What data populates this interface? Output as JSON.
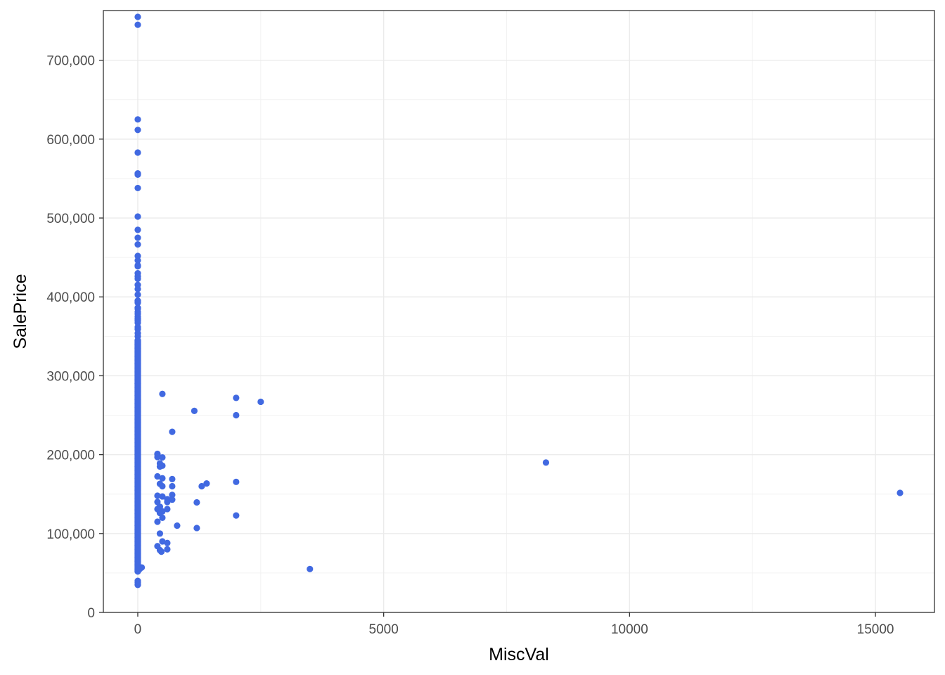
{
  "chart_data": {
    "type": "scatter",
    "title": "",
    "xlabel": "MiscVal",
    "ylabel": "SalePrice",
    "xlim": [
      -700,
      16200
    ],
    "ylim": [
      0,
      763000
    ],
    "x_ticks": [
      0,
      5000,
      10000,
      15000
    ],
    "x_tick_labels": [
      "0",
      "5000",
      "10000",
      "15000"
    ],
    "y_ticks": [
      0,
      100000,
      200000,
      300000,
      400000,
      500000,
      600000,
      700000
    ],
    "y_tick_labels": [
      "0",
      "100,000",
      "200,000",
      "300,000",
      "400,000",
      "500,000",
      "600,000",
      "700,000"
    ],
    "grid": true,
    "legend": "none",
    "point_color": "#4169E1",
    "series": [
      {
        "points": [
          [
            0,
            755000
          ],
          [
            0,
            745000
          ],
          [
            0,
            625000
          ],
          [
            0,
            611657
          ],
          [
            0,
            582933
          ],
          [
            0,
            556581
          ],
          [
            0,
            555000
          ],
          [
            0,
            538000
          ],
          [
            0,
            501837
          ],
          [
            0,
            485000
          ],
          [
            0,
            475000
          ],
          [
            0,
            466500
          ],
          [
            0,
            451950
          ],
          [
            0,
            446261
          ],
          [
            0,
            440000
          ],
          [
            0,
            438780
          ],
          [
            0,
            430000
          ],
          [
            0,
            426000
          ],
          [
            0,
            423000
          ],
          [
            0,
            415298
          ],
          [
            0,
            410000
          ],
          [
            0,
            402861
          ],
          [
            0,
            395192
          ],
          [
            0,
            394432
          ],
          [
            0,
            392500
          ],
          [
            0,
            386250
          ],
          [
            0,
            385000
          ],
          [
            0,
            381000
          ],
          [
            0,
            378500
          ],
          [
            0,
            375000
          ],
          [
            0,
            372500
          ],
          [
            0,
            370878
          ],
          [
            0,
            369900
          ],
          [
            0,
            367294
          ],
          [
            0,
            361919
          ],
          [
            0,
            359100
          ],
          [
            0,
            354000
          ],
          [
            0,
            350000
          ],
          [
            0,
            345000
          ],
          [
            0,
            340000
          ],
          [
            0,
            335000
          ],
          [
            0,
            330000
          ],
          [
            0,
            325000
          ],
          [
            0,
            320000
          ],
          [
            0,
            315000
          ],
          [
            0,
            310000
          ],
          [
            0,
            305000
          ],
          [
            0,
            300000
          ],
          [
            0,
            295000
          ],
          [
            0,
            290000
          ],
          [
            0,
            285000
          ],
          [
            0,
            280000
          ],
          [
            0,
            275000
          ],
          [
            0,
            270000
          ],
          [
            0,
            265000
          ],
          [
            0,
            260000
          ],
          [
            0,
            255000
          ],
          [
            0,
            250000
          ],
          [
            0,
            245000
          ],
          [
            0,
            240000
          ],
          [
            0,
            235000
          ],
          [
            0,
            230000
          ],
          [
            0,
            225000
          ],
          [
            0,
            220000
          ],
          [
            0,
            215000
          ],
          [
            0,
            210000
          ],
          [
            0,
            205000
          ],
          [
            0,
            200000
          ],
          [
            0,
            195000
          ],
          [
            0,
            190000
          ],
          [
            0,
            185000
          ],
          [
            0,
            180000
          ],
          [
            0,
            175000
          ],
          [
            0,
            170000
          ],
          [
            0,
            165000
          ],
          [
            0,
            160000
          ],
          [
            0,
            155000
          ],
          [
            0,
            150000
          ],
          [
            0,
            145000
          ],
          [
            0,
            140000
          ],
          [
            0,
            135000
          ],
          [
            0,
            130000
          ],
          [
            0,
            125000
          ],
          [
            0,
            120000
          ],
          [
            0,
            115000
          ],
          [
            0,
            110000
          ],
          [
            0,
            105000
          ],
          [
            0,
            100000
          ],
          [
            0,
            95000
          ],
          [
            0,
            90000
          ],
          [
            0,
            85000
          ],
          [
            0,
            80000
          ],
          [
            0,
            75000
          ],
          [
            0,
            70000
          ],
          [
            0,
            65000
          ],
          [
            0,
            60000
          ],
          [
            0,
            55000
          ],
          [
            0,
            52000
          ],
          [
            0,
            40000
          ],
          [
            0,
            37900
          ],
          [
            0,
            35311
          ],
          [
            0,
            34900
          ],
          [
            80,
            57000
          ],
          [
            40,
            55000
          ],
          [
            400,
            200500
          ],
          [
            400,
            201000
          ],
          [
            400,
            197000
          ],
          [
            450,
            189000
          ],
          [
            500,
            196500
          ],
          [
            450,
            185000
          ],
          [
            500,
            186000
          ],
          [
            400,
            172500
          ],
          [
            500,
            170000
          ],
          [
            450,
            163000
          ],
          [
            500,
            160000
          ],
          [
            400,
            148000
          ],
          [
            500,
            147000
          ],
          [
            400,
            140000
          ],
          [
            450,
            134000
          ],
          [
            400,
            131000
          ],
          [
            500,
            128000
          ],
          [
            450,
            126000
          ],
          [
            500,
            120000
          ],
          [
            400,
            115000
          ],
          [
            450,
            100000
          ],
          [
            500,
            90000
          ],
          [
            400,
            84000
          ],
          [
            450,
            79000
          ],
          [
            480,
            77000
          ],
          [
            500,
            277000
          ],
          [
            700,
            229000
          ],
          [
            700,
            169000
          ],
          [
            700,
            160000
          ],
          [
            700,
            149000
          ],
          [
            700,
            143000
          ],
          [
            600,
            143500
          ],
          [
            600,
            140000
          ],
          [
            600,
            131000
          ],
          [
            600,
            88000
          ],
          [
            600,
            80000
          ],
          [
            800,
            110000
          ],
          [
            1150,
            255500
          ],
          [
            1200,
            139500
          ],
          [
            1200,
            107000
          ],
          [
            1300,
            160000
          ],
          [
            1400,
            163500
          ],
          [
            2000,
            272000
          ],
          [
            2000,
            250000
          ],
          [
            2000,
            165500
          ],
          [
            2000,
            122900
          ],
          [
            2500,
            267000
          ],
          [
            3500,
            55000
          ],
          [
            8300,
            190000
          ],
          [
            15500,
            151500
          ]
        ]
      }
    ]
  }
}
